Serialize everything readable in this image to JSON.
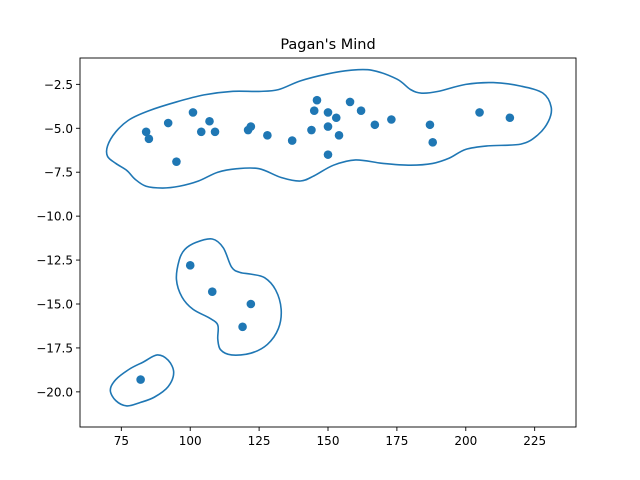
{
  "chart_data": {
    "type": "scatter",
    "title": "Pagan's Mind",
    "xlabel": "",
    "ylabel": "",
    "xlim": [
      60,
      240
    ],
    "ylim": [
      -22,
      -1
    ],
    "xticks": [
      75,
      100,
      125,
      150,
      175,
      200,
      225
    ],
    "xtick_labels": [
      "75",
      "100",
      "125",
      "150",
      "175",
      "200",
      "225"
    ],
    "yticks": [
      -2.5,
      -5.0,
      -7.5,
      -10.0,
      -12.5,
      -15.0,
      -17.5,
      -20.0
    ],
    "ytick_labels": [
      "−2.5",
      "−5.0",
      "−7.5",
      "−10.0",
      "−12.5",
      "−15.0",
      "−17.5",
      "−20.0"
    ],
    "grid": false,
    "colors": {
      "points": "#1f77b4",
      "contours": "#1f77b4"
    },
    "points": [
      {
        "x": 84,
        "y": -5.2
      },
      {
        "x": 85,
        "y": -5.6
      },
      {
        "x": 92,
        "y": -4.7
      },
      {
        "x": 95,
        "y": -6.9
      },
      {
        "x": 101,
        "y": -4.1
      },
      {
        "x": 104,
        "y": -5.2
      },
      {
        "x": 107,
        "y": -4.6
      },
      {
        "x": 109,
        "y": -5.2
      },
      {
        "x": 121,
        "y": -5.1
      },
      {
        "x": 122,
        "y": -4.9
      },
      {
        "x": 128,
        "y": -5.4
      },
      {
        "x": 137,
        "y": -5.7
      },
      {
        "x": 144,
        "y": -5.1
      },
      {
        "x": 145,
        "y": -4.0
      },
      {
        "x": 146,
        "y": -3.4
      },
      {
        "x": 150,
        "y": -4.1
      },
      {
        "x": 150,
        "y": -4.9
      },
      {
        "x": 150,
        "y": -6.5
      },
      {
        "x": 153,
        "y": -4.4
      },
      {
        "x": 154,
        "y": -5.4
      },
      {
        "x": 158,
        "y": -3.5
      },
      {
        "x": 162,
        "y": -4.0
      },
      {
        "x": 167,
        "y": -4.8
      },
      {
        "x": 173,
        "y": -4.5
      },
      {
        "x": 187,
        "y": -4.8
      },
      {
        "x": 188,
        "y": -5.8
      },
      {
        "x": 205,
        "y": -4.1
      },
      {
        "x": 216,
        "y": -4.4
      },
      {
        "x": 100,
        "y": -12.8
      },
      {
        "x": 108,
        "y": -14.3
      },
      {
        "x": 122,
        "y": -15.0
      },
      {
        "x": 119,
        "y": -16.3
      },
      {
        "x": 82,
        "y": -19.3
      }
    ],
    "contours": [
      {
        "name": "upper-cluster-contour",
        "points": [
          [
            70,
            -6.0
          ],
          [
            73,
            -5.2
          ],
          [
            78,
            -4.5
          ],
          [
            85,
            -4.0
          ],
          [
            95,
            -3.5
          ],
          [
            105,
            -3.1
          ],
          [
            115,
            -2.9
          ],
          [
            125,
            -2.9
          ],
          [
            132,
            -2.8
          ],
          [
            140,
            -2.3
          ],
          [
            150,
            -1.9
          ],
          [
            158,
            -1.7
          ],
          [
            166,
            -1.7
          ],
          [
            175,
            -2.2
          ],
          [
            180,
            -2.8
          ],
          [
            184,
            -3.0
          ],
          [
            190,
            -2.9
          ],
          [
            200,
            -2.5
          ],
          [
            210,
            -2.4
          ],
          [
            220,
            -2.6
          ],
          [
            228,
            -3.0
          ],
          [
            231,
            -3.8
          ],
          [
            230,
            -4.6
          ],
          [
            226,
            -5.4
          ],
          [
            220,
            -5.9
          ],
          [
            208,
            -6.0
          ],
          [
            200,
            -6.2
          ],
          [
            194,
            -6.7
          ],
          [
            188,
            -7.0
          ],
          [
            180,
            -7.1
          ],
          [
            170,
            -7.0
          ],
          [
            160,
            -6.8
          ],
          [
            152,
            -7.1
          ],
          [
            145,
            -7.7
          ],
          [
            140,
            -8.0
          ],
          [
            133,
            -7.8
          ],
          [
            125,
            -7.3
          ],
          [
            117,
            -7.3
          ],
          [
            110,
            -7.5
          ],
          [
            103,
            -8.0
          ],
          [
            96,
            -8.3
          ],
          [
            90,
            -8.4
          ],
          [
            84,
            -8.3
          ],
          [
            80,
            -7.9
          ],
          [
            77,
            -7.4
          ],
          [
            73,
            -7.0
          ],
          [
            70,
            -6.6
          ]
        ]
      },
      {
        "name": "middle-cluster-contour",
        "points": [
          [
            102,
            -11.5
          ],
          [
            108,
            -11.3
          ],
          [
            112,
            -11.8
          ],
          [
            115,
            -12.9
          ],
          [
            118,
            -13.2
          ],
          [
            122,
            -13.3
          ],
          [
            127,
            -13.5
          ],
          [
            131,
            -14.2
          ],
          [
            133,
            -15.3
          ],
          [
            132,
            -16.4
          ],
          [
            128,
            -17.3
          ],
          [
            122,
            -17.8
          ],
          [
            115,
            -17.9
          ],
          [
            111,
            -17.6
          ],
          [
            110,
            -17.0
          ],
          [
            110,
            -16.2
          ],
          [
            107,
            -15.8
          ],
          [
            101,
            -15.3
          ],
          [
            97,
            -14.6
          ],
          [
            95,
            -13.6
          ],
          [
            96,
            -12.5
          ],
          [
            98,
            -11.9
          ]
        ]
      },
      {
        "name": "lower-cluster-contour",
        "points": [
          [
            83,
            -18.3
          ],
          [
            88,
            -17.9
          ],
          [
            92,
            -18.2
          ],
          [
            94,
            -18.9
          ],
          [
            92,
            -19.7
          ],
          [
            87,
            -20.3
          ],
          [
            82,
            -20.6
          ],
          [
            77,
            -20.8
          ],
          [
            73,
            -20.5
          ],
          [
            71,
            -19.9
          ],
          [
            73,
            -19.3
          ],
          [
            78,
            -18.7
          ]
        ]
      }
    ]
  }
}
